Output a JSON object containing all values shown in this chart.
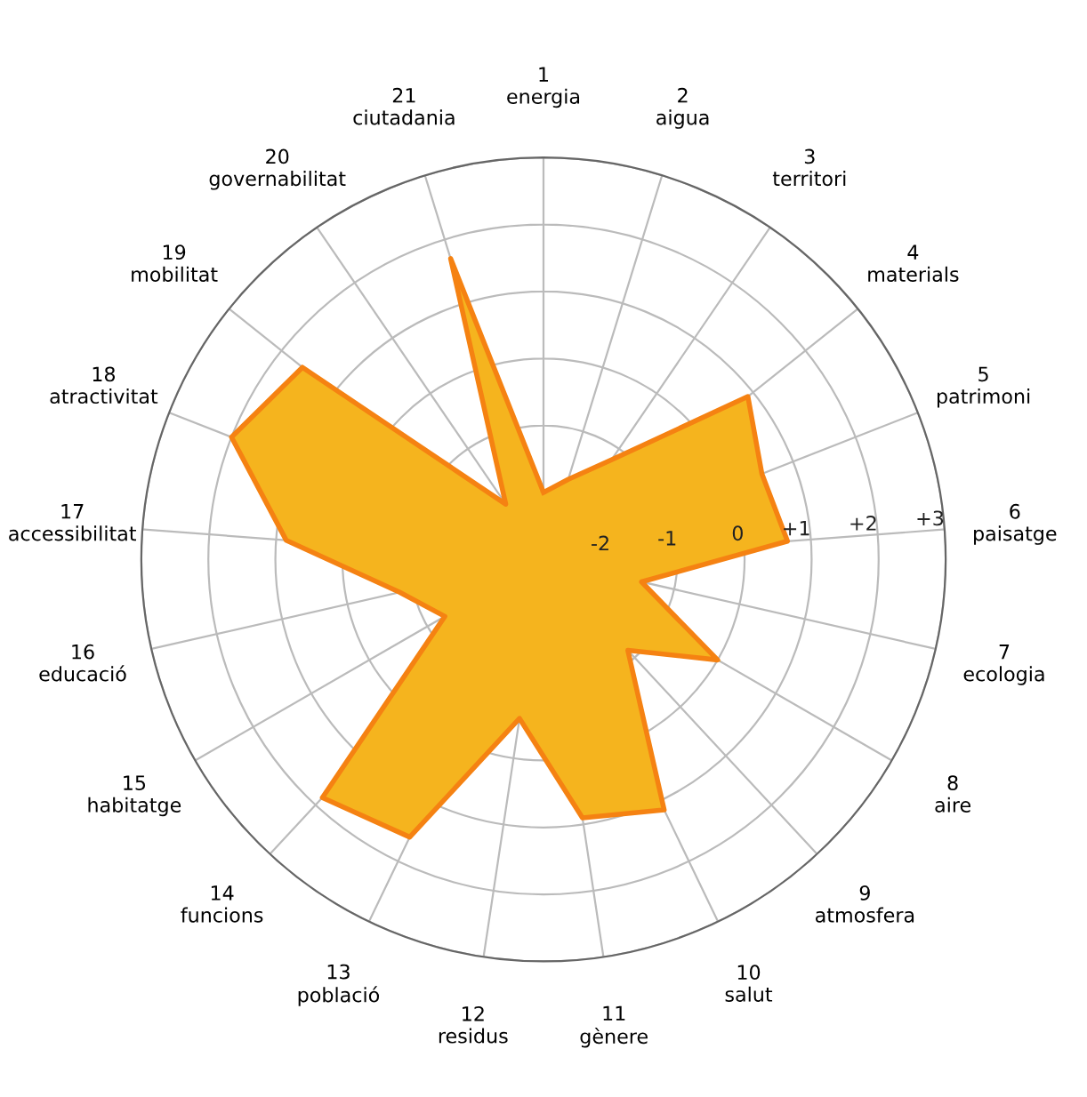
{
  "chart_data": {
    "type": "radar",
    "categories": [
      "1\nenergia",
      "2\naigua",
      "3\nterritori",
      "4\nmaterials",
      "5\npatrimoni",
      "6\npaisatge",
      "7\necologia",
      "8\naire",
      "9\natmosfera",
      "10\nsalut",
      "11\ngènere",
      "12\nresidus",
      "13\npoblació",
      "14\nfuncions",
      "15\nhabitatge",
      "16\neducació",
      "17\naccessibilitat",
      "18\natractivitat",
      "19\nmobilitat",
      "20\ngovernabilitat",
      "21\nciutadania"
    ],
    "series": [
      {
        "color": "#f5b41e",
        "values": [
          -2.0,
          -1.75,
          -1.2,
          0.9,
          0.5,
          0.65,
          -1.5,
          0.0,
          -1.15,
          1.15,
          0.9,
          -0.6,
          1.6,
          1.85,
          -1.3,
          -0.8,
          0.85,
          2.0,
          1.6,
          -2.0,
          1.7
        ]
      }
    ],
    "ylim": [
      -3,
      3
    ],
    "yticks": [
      {
        "value": -2,
        "label": "-2"
      },
      {
        "value": -1,
        "label": "-1"
      },
      0,
      {
        "value": 1,
        "label": "+1"
      },
      {
        "value": 2,
        "label": "+2"
      },
      {
        "value": 3,
        "label": "+3"
      }
    ],
    "grid": true
  }
}
